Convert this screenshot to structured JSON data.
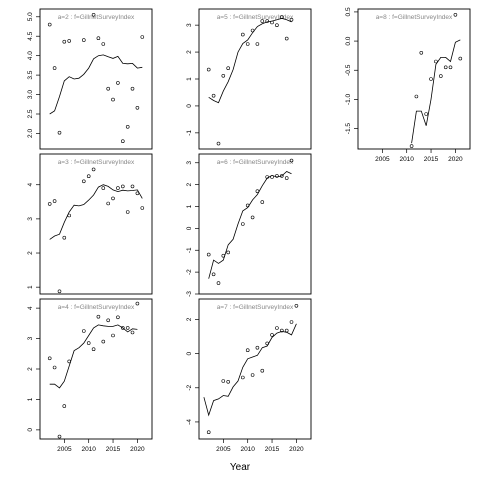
{
  "xlabel": "Year",
  "chart_data": [
    {
      "type": "scatter",
      "title": "a=2 : f=GillnetSurveyIndex",
      "xlim": [
        2000,
        2023
      ],
      "ylim": [
        1.6,
        5.2
      ],
      "yticks": [
        2.0,
        2.5,
        3.0,
        3.5,
        4.0,
        4.5,
        5.0
      ],
      "ytick_labels": [
        "2.0",
        "2.5",
        "3.0",
        "3.5",
        "4.0",
        "4.5",
        "5.0"
      ],
      "xticks": [],
      "xtick_labels": [],
      "points": [
        [
          2002,
          4.8
        ],
        [
          2003,
          3.68
        ],
        [
          2004,
          2.02
        ],
        [
          2005,
          4.36
        ],
        [
          2006,
          4.38
        ],
        [
          2009,
          4.4
        ],
        [
          2011,
          5.05
        ],
        [
          2012,
          4.45
        ],
        [
          2013,
          4.3
        ],
        [
          2014,
          3.15
        ],
        [
          2015,
          2.87
        ],
        [
          2016,
          3.3
        ],
        [
          2017,
          1.8
        ],
        [
          2018,
          2.17
        ],
        [
          2019,
          3.15
        ],
        [
          2020,
          2.66
        ],
        [
          2021,
          4.48
        ]
      ],
      "fit": [
        [
          2002,
          2.5
        ],
        [
          2003,
          2.58
        ],
        [
          2004,
          2.95
        ],
        [
          2005,
          3.35
        ],
        [
          2006,
          3.46
        ],
        [
          2007,
          3.4
        ],
        [
          2008,
          3.42
        ],
        [
          2009,
          3.52
        ],
        [
          2010,
          3.68
        ],
        [
          2011,
          3.92
        ],
        [
          2012,
          4.0
        ],
        [
          2013,
          4.02
        ],
        [
          2014,
          3.97
        ],
        [
          2015,
          3.93
        ],
        [
          2016,
          3.98
        ],
        [
          2017,
          3.8
        ],
        [
          2018,
          3.79
        ],
        [
          2019,
          3.8
        ],
        [
          2020,
          3.68
        ],
        [
          2021,
          3.7
        ]
      ]
    },
    {
      "type": "scatter",
      "title": "a=3 : f=GillnetSurveyIndex",
      "xlim": [
        2000,
        2023
      ],
      "ylim": [
        0.8,
        4.9
      ],
      "yticks": [
        1,
        2,
        3,
        4
      ],
      "ytick_labels": [
        "1",
        "2",
        "3",
        "4"
      ],
      "xticks": [],
      "xtick_labels": [],
      "points": [
        [
          2002,
          3.44
        ],
        [
          2003,
          3.52
        ],
        [
          2004,
          0.88
        ],
        [
          2005,
          2.45
        ],
        [
          2006,
          3.1
        ],
        [
          2009,
          4.1
        ],
        [
          2010,
          4.25
        ],
        [
          2011,
          4.45
        ],
        [
          2013,
          3.9
        ],
        [
          2014,
          3.45
        ],
        [
          2015,
          3.6
        ],
        [
          2016,
          3.9
        ],
        [
          2017,
          3.95
        ],
        [
          2018,
          3.2
        ],
        [
          2019,
          3.95
        ],
        [
          2020,
          3.75
        ],
        [
          2021,
          3.32
        ]
      ],
      "fit": [
        [
          2002,
          2.4
        ],
        [
          2003,
          2.5
        ],
        [
          2004,
          2.55
        ],
        [
          2005,
          2.9
        ],
        [
          2006,
          3.2
        ],
        [
          2007,
          3.4
        ],
        [
          2008,
          3.38
        ],
        [
          2009,
          3.42
        ],
        [
          2010,
          3.55
        ],
        [
          2011,
          3.7
        ],
        [
          2012,
          3.93
        ],
        [
          2013,
          4.0
        ],
        [
          2014,
          3.95
        ],
        [
          2015,
          3.85
        ],
        [
          2016,
          3.8
        ],
        [
          2017,
          3.84
        ],
        [
          2018,
          3.82
        ],
        [
          2019,
          3.83
        ],
        [
          2020,
          3.85
        ],
        [
          2021,
          3.6
        ]
      ]
    },
    {
      "type": "scatter",
      "title": "a=4 : f=GillnetSurveyIndex",
      "xlim": [
        2000,
        2023
      ],
      "ylim": [
        -0.3,
        4.3
      ],
      "yticks": [
        0,
        1,
        2,
        3,
        4
      ],
      "ytick_labels": [
        "0",
        "1",
        "2",
        "3",
        "4"
      ],
      "xticks": [
        2005,
        2010,
        2015,
        2020
      ],
      "xtick_labels": [
        "2005",
        "2010",
        "2015",
        "2020"
      ],
      "points": [
        [
          2002,
          2.35
        ],
        [
          2003,
          2.05
        ],
        [
          2004,
          -0.22
        ],
        [
          2005,
          0.78
        ],
        [
          2006,
          2.25
        ],
        [
          2009,
          3.25
        ],
        [
          2010,
          2.85
        ],
        [
          2011,
          2.65
        ],
        [
          2012,
          3.72
        ],
        [
          2013,
          2.9
        ],
        [
          2014,
          3.6
        ],
        [
          2015,
          3.1
        ],
        [
          2016,
          3.7
        ],
        [
          2017,
          3.35
        ],
        [
          2018,
          3.35
        ],
        [
          2019,
          3.2
        ],
        [
          2020,
          4.15
        ]
      ],
      "fit": [
        [
          2002,
          1.5
        ],
        [
          2003,
          1.5
        ],
        [
          2004,
          1.38
        ],
        [
          2005,
          1.6
        ],
        [
          2006,
          2.1
        ],
        [
          2007,
          2.6
        ],
        [
          2008,
          2.7
        ],
        [
          2009,
          2.85
        ],
        [
          2010,
          3.1
        ],
        [
          2011,
          3.35
        ],
        [
          2012,
          3.45
        ],
        [
          2013,
          3.42
        ],
        [
          2014,
          3.4
        ],
        [
          2015,
          3.4
        ],
        [
          2016,
          3.45
        ],
        [
          2017,
          3.35
        ],
        [
          2018,
          3.22
        ],
        [
          2019,
          3.32
        ],
        [
          2020,
          3.3
        ]
      ]
    },
    {
      "type": "scatter",
      "title": "a=5 : f=GillnetSurveyIndex",
      "xlim": [
        2000,
        2023
      ],
      "ylim": [
        -1.6,
        3.6
      ],
      "yticks": [
        -1,
        0,
        1,
        2,
        3
      ],
      "ytick_labels": [
        "-1",
        "0",
        "1",
        "2",
        "3"
      ],
      "xticks": [],
      "xtick_labels": [],
      "points": [
        [
          2002,
          1.35
        ],
        [
          2003,
          0.38
        ],
        [
          2004,
          -1.4
        ],
        [
          2005,
          1.12
        ],
        [
          2006,
          1.4
        ],
        [
          2009,
          2.65
        ],
        [
          2010,
          2.3
        ],
        [
          2011,
          2.8
        ],
        [
          2012,
          2.3
        ],
        [
          2013,
          3.15
        ],
        [
          2014,
          3.15
        ],
        [
          2015,
          3.1
        ],
        [
          2016,
          3.0
        ],
        [
          2017,
          3.3
        ],
        [
          2018,
          2.5
        ],
        [
          2019,
          3.2
        ]
      ],
      "fit": [
        [
          2002,
          0.32
        ],
        [
          2003,
          0.2
        ],
        [
          2004,
          0.12
        ],
        [
          2005,
          0.55
        ],
        [
          2006,
          0.9
        ],
        [
          2007,
          1.35
        ],
        [
          2008,
          2.0
        ],
        [
          2009,
          2.32
        ],
        [
          2010,
          2.45
        ],
        [
          2011,
          2.72
        ],
        [
          2012,
          2.95
        ],
        [
          2013,
          3.05
        ],
        [
          2014,
          3.12
        ],
        [
          2015,
          3.15
        ],
        [
          2016,
          3.2
        ],
        [
          2017,
          3.25
        ],
        [
          2018,
          3.2
        ],
        [
          2019,
          3.12
        ]
      ]
    },
    {
      "type": "scatter",
      "title": "a=6 : f=GillnetSurveyIndex",
      "xlim": [
        2000,
        2023
      ],
      "ylim": [
        -3.0,
        3.4
      ],
      "yticks": [
        -3,
        -2,
        -1,
        0,
        1,
        2,
        3
      ],
      "ytick_labels": [
        "-3",
        "-2",
        "-1",
        "0",
        "1",
        "2",
        "3"
      ],
      "xticks": [],
      "xtick_labels": [],
      "points": [
        [
          2002,
          -1.2
        ],
        [
          2003,
          -2.1
        ],
        [
          2004,
          -2.5
        ],
        [
          2005,
          -1.25
        ],
        [
          2006,
          -1.1
        ],
        [
          2009,
          0.2
        ],
        [
          2010,
          1.05
        ],
        [
          2011,
          0.5
        ],
        [
          2012,
          1.7
        ],
        [
          2013,
          1.2
        ],
        [
          2014,
          2.35
        ],
        [
          2015,
          2.35
        ],
        [
          2016,
          2.4
        ],
        [
          2017,
          2.4
        ],
        [
          2018,
          2.3
        ],
        [
          2019,
          3.1
        ]
      ],
      "fit": [
        [
          2002,
          -2.3
        ],
        [
          2003,
          -1.45
        ],
        [
          2004,
          -1.6
        ],
        [
          2005,
          -1.45
        ],
        [
          2006,
          -0.75
        ],
        [
          2007,
          -0.5
        ],
        [
          2008,
          0.2
        ],
        [
          2009,
          0.8
        ],
        [
          2010,
          0.95
        ],
        [
          2011,
          1.3
        ],
        [
          2012,
          1.55
        ],
        [
          2013,
          1.95
        ],
        [
          2014,
          2.3
        ],
        [
          2015,
          2.42
        ],
        [
          2016,
          2.35
        ],
        [
          2017,
          2.4
        ],
        [
          2018,
          2.6
        ],
        [
          2019,
          2.5
        ]
      ]
    },
    {
      "type": "scatter",
      "title": "a=7 : f=GillnetSurveyIndex",
      "xlim": [
        2000,
        2023
      ],
      "ylim": [
        -5.0,
        3.2
      ],
      "yticks": [
        -4,
        -2,
        0,
        2
      ],
      "ytick_labels": [
        "-4",
        "-2",
        "0",
        "2"
      ],
      "xticks": [
        2005,
        2010,
        2015,
        2020
      ],
      "xtick_labels": [
        "2005",
        "2010",
        "2015",
        "2020"
      ],
      "points": [
        [
          2002,
          -4.6
        ],
        [
          2005,
          -1.6
        ],
        [
          2006,
          -1.65
        ],
        [
          2009,
          -1.4
        ],
        [
          2010,
          0.2
        ],
        [
          2011,
          -1.25
        ],
        [
          2012,
          0.35
        ],
        [
          2013,
          -1.0
        ],
        [
          2014,
          0.6
        ],
        [
          2015,
          1.1
        ],
        [
          2016,
          1.5
        ],
        [
          2017,
          1.35
        ],
        [
          2018,
          1.35
        ],
        [
          2019,
          1.85
        ],
        [
          2020,
          2.8
        ]
      ],
      "fit": [
        [
          2001,
          -2.55
        ],
        [
          2002,
          -3.6
        ],
        [
          2003,
          -2.75
        ],
        [
          2004,
          -2.65
        ],
        [
          2005,
          -2.45
        ],
        [
          2006,
          -2.5
        ],
        [
          2007,
          -1.95
        ],
        [
          2008,
          -1.6
        ],
        [
          2009,
          -0.8
        ],
        [
          2010,
          -0.3
        ],
        [
          2011,
          -0.2
        ],
        [
          2012,
          -0.1
        ],
        [
          2013,
          0.35
        ],
        [
          2014,
          0.45
        ],
        [
          2015,
          0.95
        ],
        [
          2016,
          1.2
        ],
        [
          2017,
          1.3
        ],
        [
          2018,
          1.25
        ],
        [
          2019,
          1.1
        ],
        [
          2020,
          1.75
        ]
      ]
    },
    {
      "type": "scatter",
      "title": "a=8 : f=GillnetSurveyIndex",
      "xlim": [
        2000,
        2023
      ],
      "ylim": [
        -1.85,
        0.55
      ],
      "yticks": [
        -1.5,
        -1.0,
        -0.5,
        0.0,
        0.5
      ],
      "ytick_labels": [
        "-1.5",
        "-1.0",
        "-0.5",
        "0.0",
        "0.5"
      ],
      "xticks": [
        2005,
        2010,
        2015,
        2020
      ],
      "xtick_labels": [
        "2005",
        "2010",
        "2015",
        "2020"
      ],
      "points": [
        [
          2011,
          -1.8
        ],
        [
          2012,
          -0.95
        ],
        [
          2013,
          -0.2
        ],
        [
          2014,
          -1.25
        ],
        [
          2015,
          -0.65
        ],
        [
          2016,
          -0.35
        ],
        [
          2017,
          -0.6
        ],
        [
          2018,
          -0.45
        ],
        [
          2019,
          -0.45
        ],
        [
          2020,
          0.45
        ],
        [
          2021,
          -0.3
        ]
      ],
      "fit": [
        [
          2011,
          -1.75
        ],
        [
          2012,
          -1.2
        ],
        [
          2013,
          -1.2
        ],
        [
          2014,
          -1.45
        ],
        [
          2015,
          -1.0
        ],
        [
          2016,
          -0.4
        ],
        [
          2017,
          -0.28
        ],
        [
          2018,
          -0.28
        ],
        [
          2019,
          -0.35
        ],
        [
          2020,
          -0.02
        ],
        [
          2021,
          0.02
        ]
      ]
    }
  ]
}
